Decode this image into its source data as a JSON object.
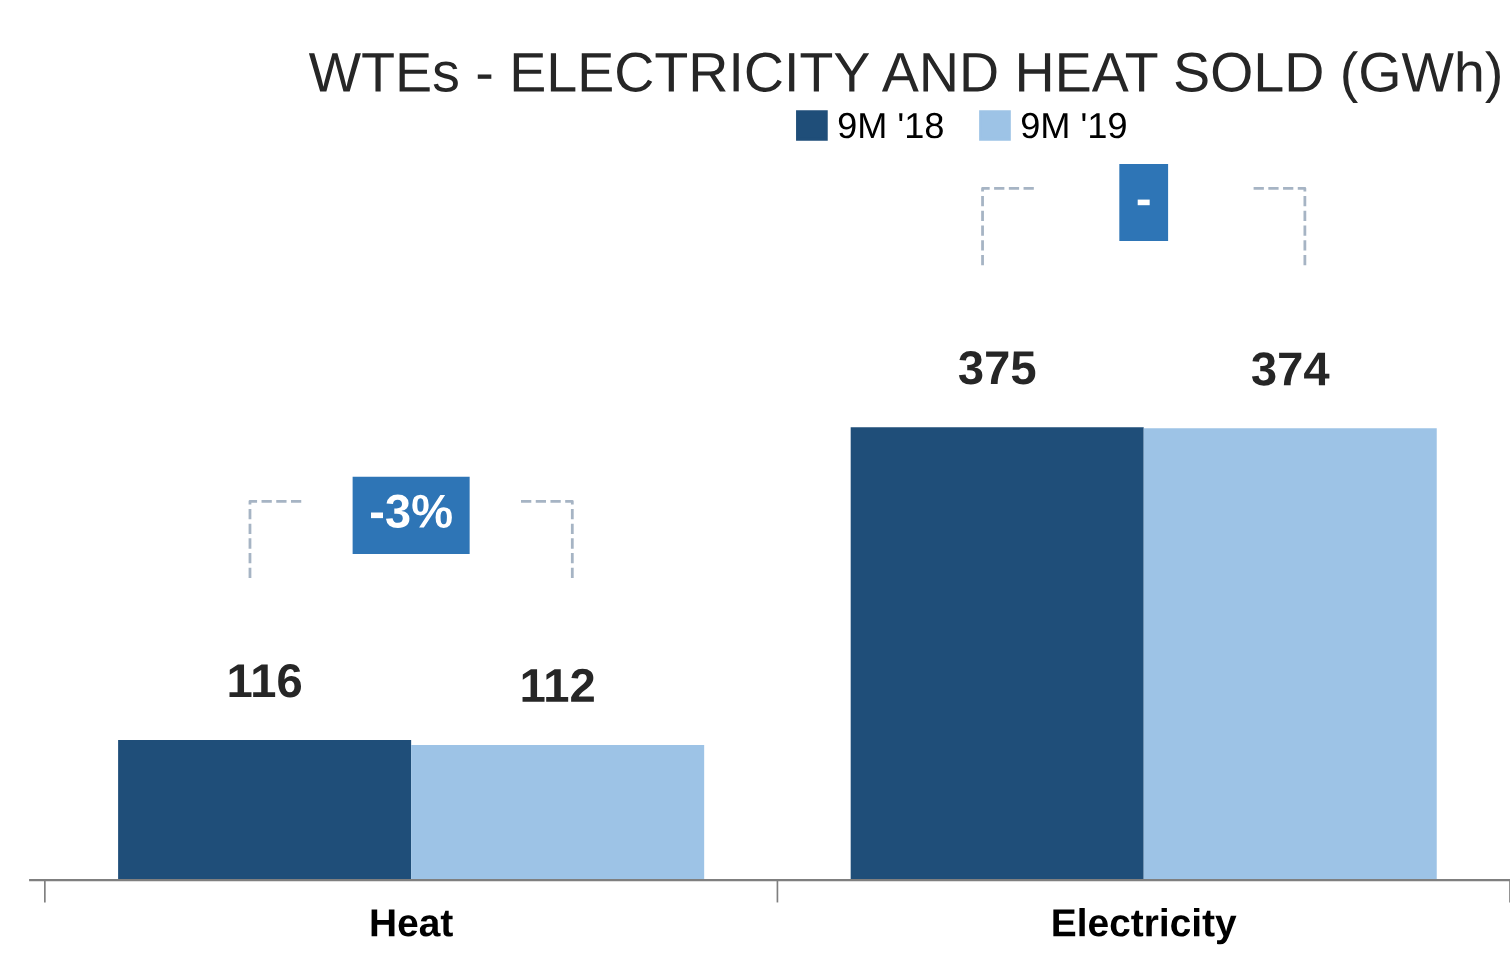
{
  "chart_data": {
    "type": "bar",
    "title": "WTEs - ELECTRICITY AND HEAT SOLD (GWh)",
    "categories": [
      "Heat",
      "Electricity"
    ],
    "series": [
      {
        "name": "9M '18",
        "color": "#1f4e79",
        "values": [
          116,
          375
        ]
      },
      {
        "name": "9M '19",
        "color": "#9dc3e6",
        "values": [
          112,
          374
        ]
      }
    ],
    "data_labels": true,
    "legend": "top",
    "grid": false,
    "annotations": [
      "-3%",
      "-"
    ]
  }
}
